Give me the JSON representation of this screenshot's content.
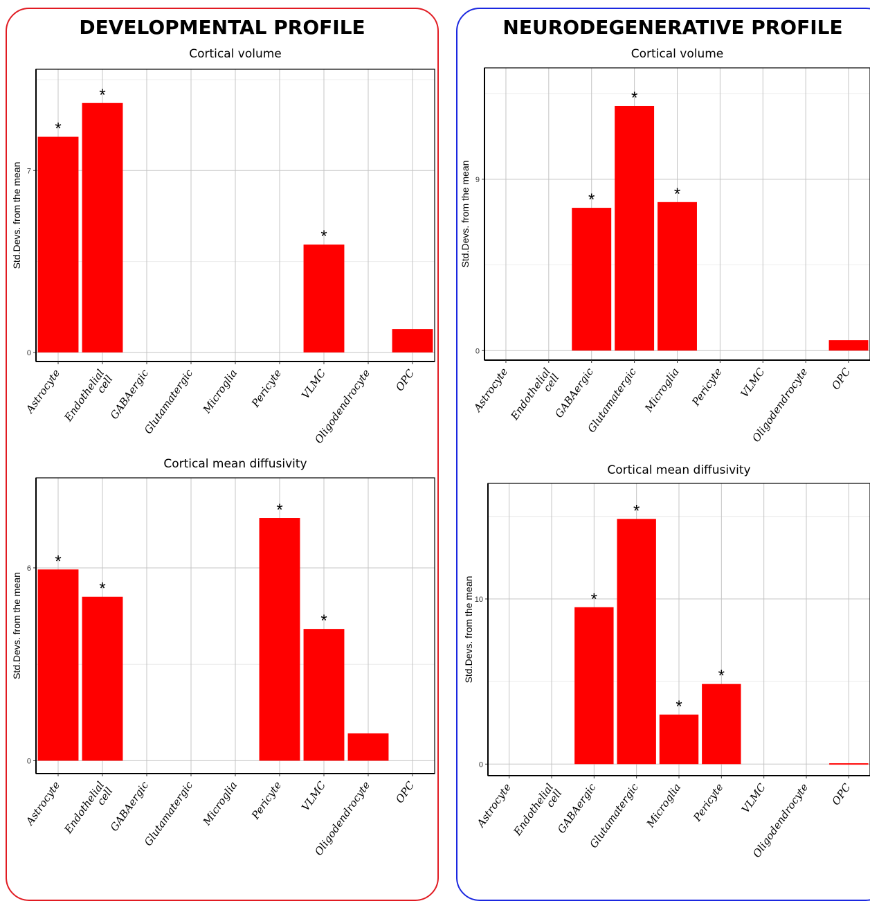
{
  "panels": {
    "developmental": {
      "title": "DEVELOPMENTAL PROFILE",
      "border_color": "#e11b22"
    },
    "neurodegenerative": {
      "title": "NEURODEGENERATIVE PROFILE",
      "border_color": "#1b28e0"
    }
  },
  "chart_data": [
    {
      "id": "dev-volume",
      "type": "bar",
      "title": "Cortical volume",
      "ylabel": "Std.Devs. from the mean",
      "xlabel": "",
      "categories": [
        "Astrocyte",
        "Endothelial\ncell",
        "GABAergic",
        "Glutamatergic",
        "Microglia",
        "Pericyte",
        "VLMC",
        "Oligodendrocyte",
        "OPC"
      ],
      "values": [
        8.3,
        9.6,
        0,
        0,
        0,
        0,
        4.15,
        0,
        0.9
      ],
      "significant": [
        true,
        true,
        false,
        false,
        false,
        false,
        true,
        false,
        false
      ],
      "annotation": "*",
      "yticks": [
        0,
        7
      ],
      "ylim": [
        -0.35,
        10.9
      ],
      "bar_color": "#ff0000",
      "grid": true
    },
    {
      "id": "dev-diffusivity",
      "type": "bar",
      "title": "Cortical mean diffusivity",
      "ylabel": "Std.Devs. from the mean",
      "xlabel": "",
      "categories": [
        "Astrocyte",
        "Endothelial\ncell",
        "GABAergic",
        "Glutamatergic",
        "Microglia",
        "Pericyte",
        "VLMC",
        "Oligodendrocyte",
        "OPC"
      ],
      "values": [
        5.95,
        5.1,
        0,
        0,
        0,
        7.55,
        4.1,
        0.85,
        0
      ],
      "significant": [
        true,
        true,
        false,
        false,
        false,
        true,
        true,
        false,
        false
      ],
      "annotation": "*",
      "yticks": [
        0,
        6
      ],
      "ylim": [
        -0.4,
        8.8
      ],
      "bar_color": "#ff0000",
      "grid": true
    },
    {
      "id": "neuro-volume",
      "type": "bar",
      "title": "Cortical volume",
      "ylabel": "Std.Devs. from the mean",
      "xlabel": "",
      "categories": [
        "Astrocyte",
        "Endothelial\ncell",
        "GABAergic",
        "Glutamatergic",
        "Microglia",
        "Pericyte",
        "VLMC",
        "Oligodendrocyte",
        "OPC"
      ],
      "values": [
        0,
        0,
        7.5,
        12.85,
        7.8,
        0,
        0,
        0,
        0.55
      ],
      "significant": [
        false,
        false,
        true,
        true,
        true,
        false,
        false,
        false,
        false
      ],
      "annotation": "*",
      "yticks": [
        0,
        9
      ],
      "ylim": [
        -0.5,
        14.85
      ],
      "bar_color": "#ff0000",
      "grid": true
    },
    {
      "id": "neuro-diffusivity",
      "type": "bar",
      "title": "Cortical mean diffusivity",
      "ylabel": "Std.Devs. from the mean",
      "xlabel": "",
      "categories": [
        "Astrocyte",
        "Endothelial\ncell",
        "GABAergic",
        "Glutamatergic",
        "Microglia",
        "Pericyte",
        "VLMC",
        "Oligodendrocyte",
        "OPC"
      ],
      "values": [
        0,
        0,
        9.5,
        14.85,
        3.0,
        4.85,
        0,
        0,
        0.05
      ],
      "significant": [
        false,
        false,
        true,
        true,
        true,
        true,
        false,
        false,
        false
      ],
      "annotation": "*",
      "yticks": [
        0,
        10
      ],
      "ylim": [
        -0.7,
        17.0
      ],
      "bar_color": "#ff0000",
      "grid": true
    }
  ]
}
